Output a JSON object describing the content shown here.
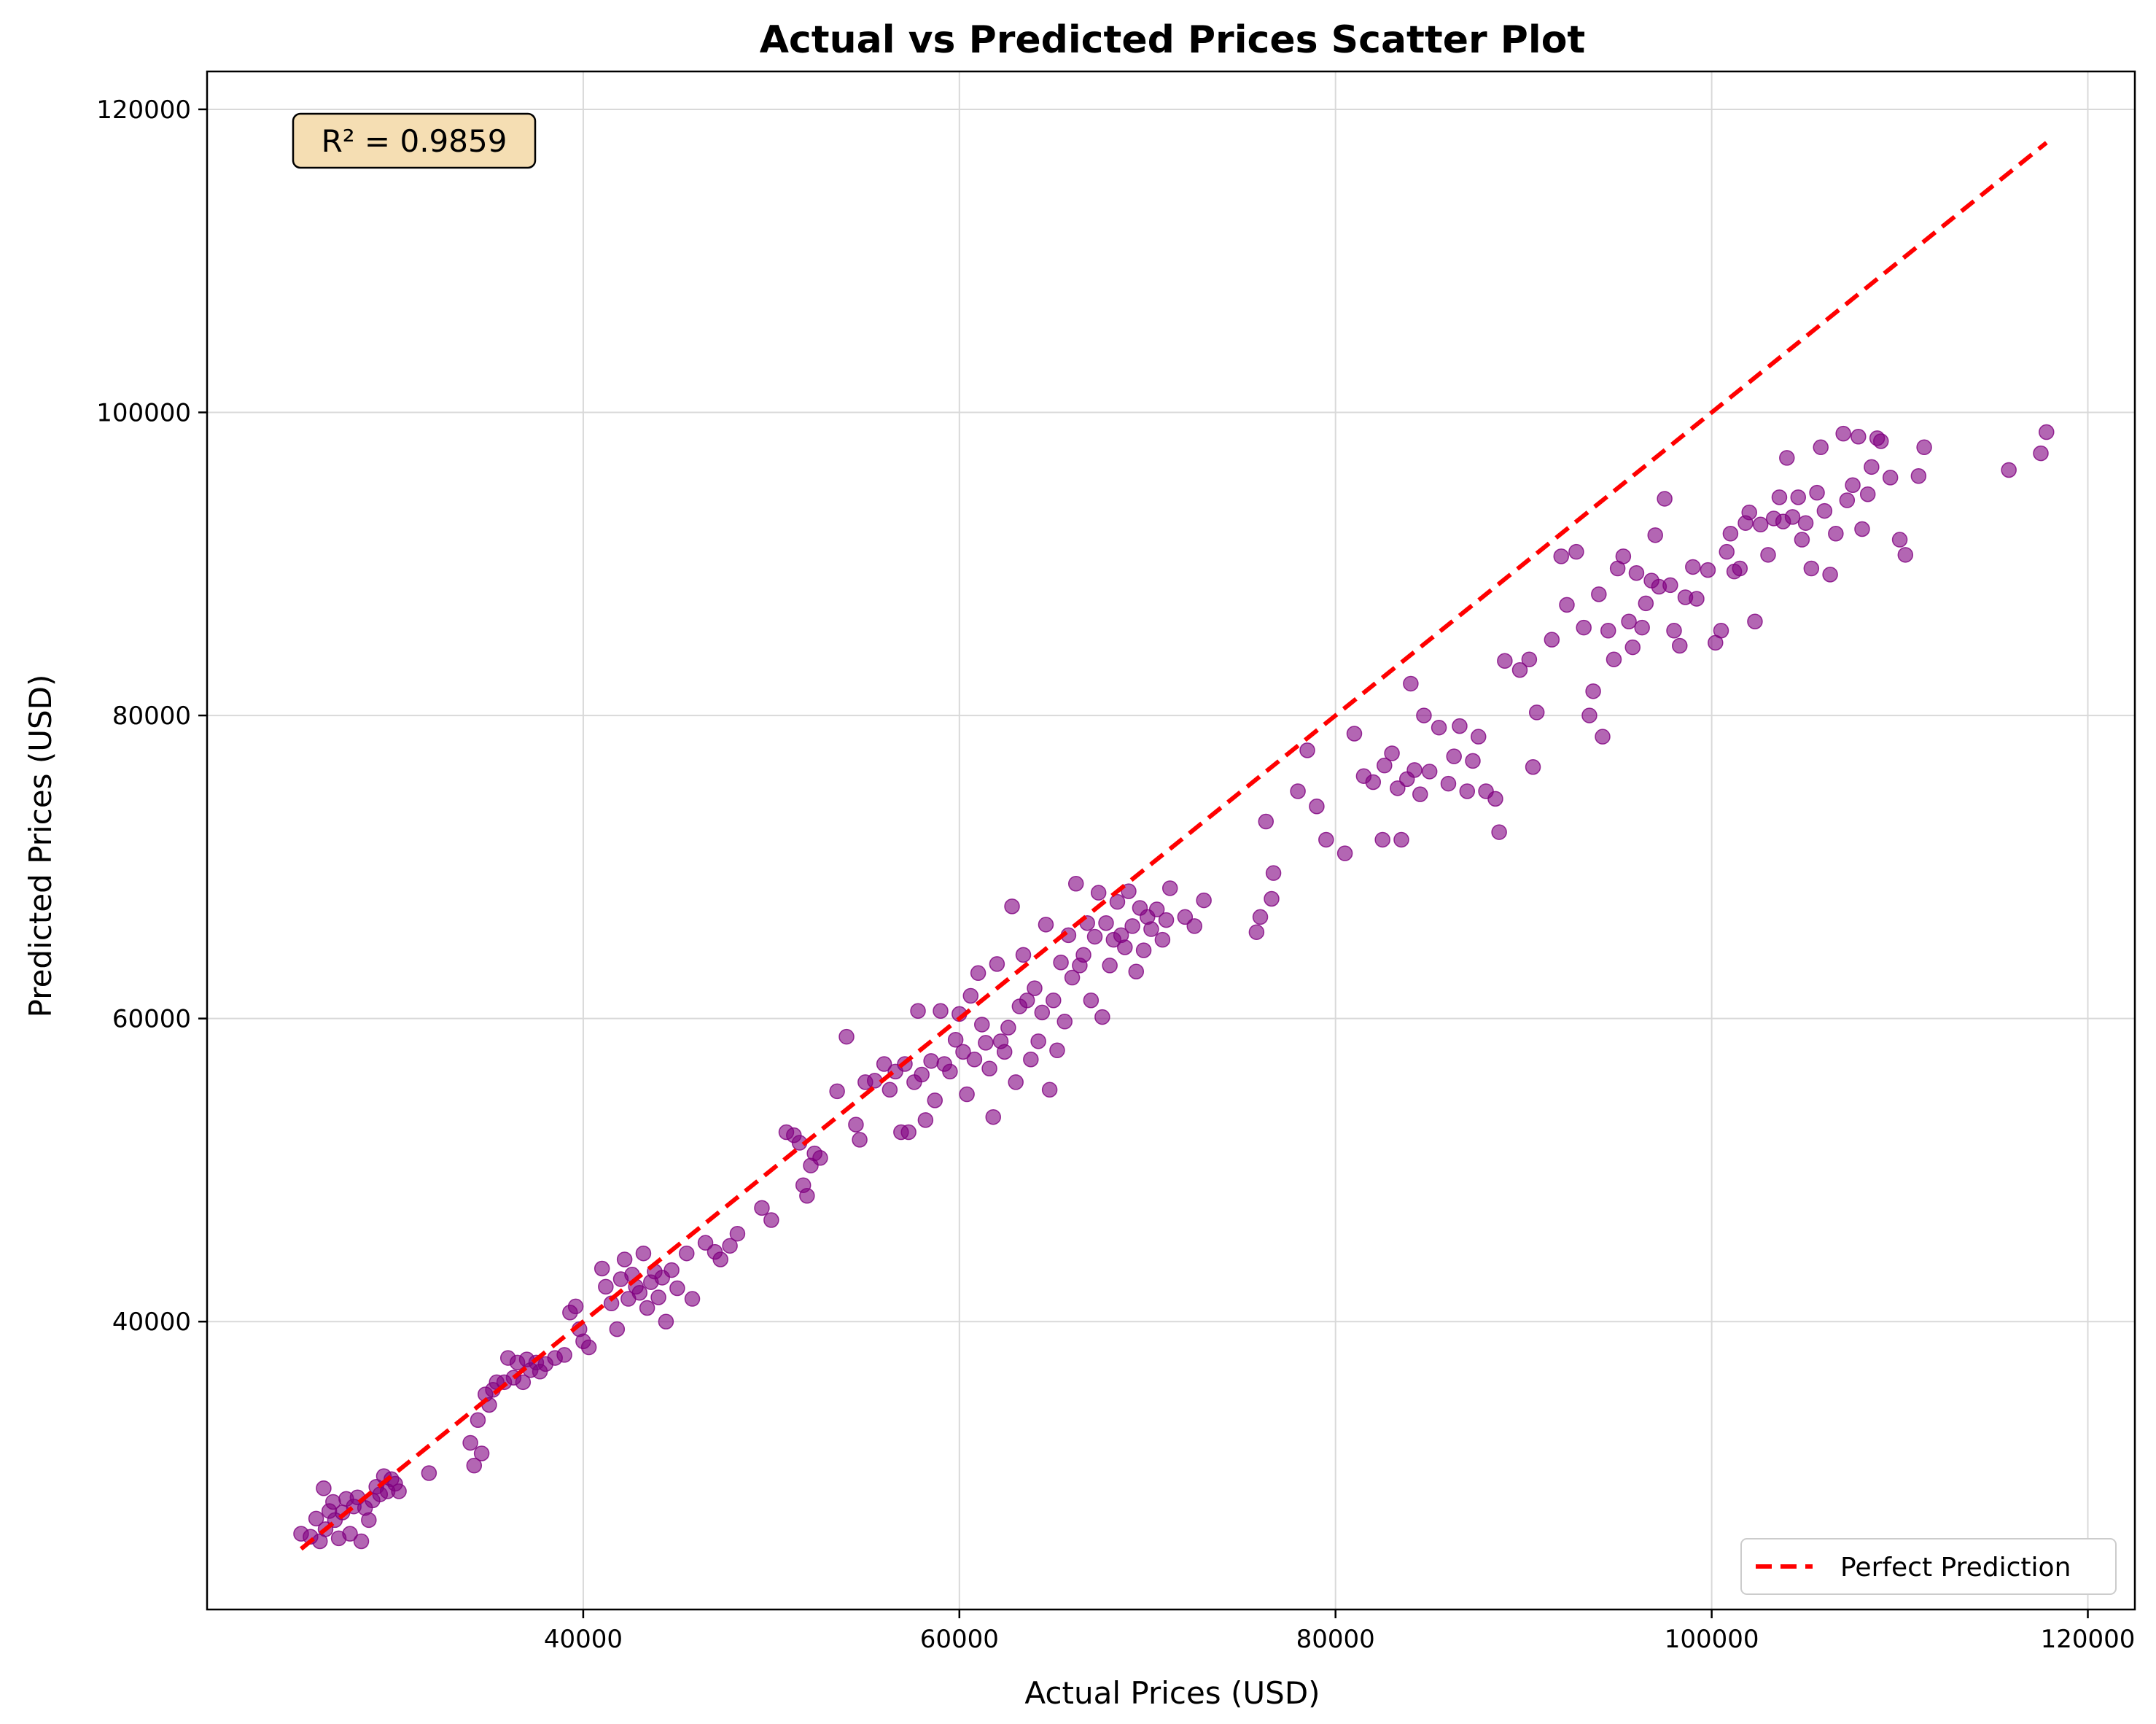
{
  "chart_data": {
    "type": "scatter",
    "title": "Actual vs Predicted Prices Scatter Plot",
    "xlabel": "Actual Prices (USD)",
    "ylabel": "Predicted Prices (USD)",
    "xlim": [
      20000,
      122500
    ],
    "ylim": [
      21000,
      122500
    ],
    "xticks": [
      40000,
      60000,
      80000,
      100000,
      120000
    ],
    "yticks": [
      40000,
      60000,
      80000,
      100000,
      120000
    ],
    "grid": true,
    "legend_position": "lower-right",
    "annotation": "R² = 0.9859",
    "colors": {
      "points": "#800080",
      "reference_line": "#ff0000",
      "annotation_bg": "#f5deb3"
    },
    "series": [
      {
        "name": "",
        "kind": "points",
        "points": [
          [
            25000,
            26000
          ],
          [
            25500,
            25800
          ],
          [
            25800,
            27000
          ],
          [
            26000,
            25500
          ],
          [
            26200,
            29000
          ],
          [
            26300,
            26300
          ],
          [
            26500,
            27500
          ],
          [
            26700,
            28100
          ],
          [
            26800,
            26900
          ],
          [
            27000,
            25700
          ],
          [
            27200,
            27400
          ],
          [
            27400,
            28300
          ],
          [
            27600,
            26000
          ],
          [
            27800,
            27800
          ],
          [
            28000,
            28400
          ],
          [
            28200,
            25500
          ],
          [
            28400,
            27700
          ],
          [
            28600,
            26900
          ],
          [
            28800,
            28200
          ],
          [
            29000,
            29100
          ],
          [
            29200,
            28600
          ],
          [
            29400,
            29800
          ],
          [
            29600,
            28800
          ],
          [
            29800,
            29600
          ],
          [
            30000,
            29300
          ],
          [
            30200,
            28800
          ],
          [
            31800,
            30000
          ],
          [
            34000,
            32000
          ],
          [
            34200,
            30500
          ],
          [
            34400,
            33500
          ],
          [
            34600,
            31300
          ],
          [
            34800,
            35200
          ],
          [
            35000,
            34500
          ],
          [
            35200,
            35500
          ],
          [
            35400,
            36000
          ],
          [
            35800,
            36000
          ],
          [
            36000,
            37600
          ],
          [
            36300,
            36300
          ],
          [
            36500,
            37300
          ],
          [
            36800,
            36000
          ],
          [
            37000,
            37500
          ],
          [
            37200,
            36800
          ],
          [
            37500,
            37300
          ],
          [
            37700,
            36700
          ],
          [
            38000,
            37200
          ],
          [
            38500,
            37600
          ],
          [
            39000,
            37800
          ],
          [
            39300,
            40600
          ],
          [
            39600,
            41000
          ],
          [
            39800,
            39500
          ],
          [
            40000,
            38700
          ],
          [
            40300,
            38300
          ],
          [
            41000,
            43500
          ],
          [
            41200,
            42300
          ],
          [
            41500,
            41200
          ],
          [
            41800,
            39500
          ],
          [
            42000,
            42800
          ],
          [
            42200,
            44100
          ],
          [
            42400,
            41500
          ],
          [
            42600,
            43100
          ],
          [
            42800,
            42300
          ],
          [
            43000,
            41900
          ],
          [
            43200,
            44500
          ],
          [
            43400,
            40900
          ],
          [
            43600,
            42600
          ],
          [
            43800,
            43300
          ],
          [
            44000,
            41600
          ],
          [
            44200,
            42900
          ],
          [
            44400,
            40000
          ],
          [
            44700,
            43400
          ],
          [
            45000,
            42200
          ],
          [
            45500,
            44500
          ],
          [
            45800,
            41500
          ],
          [
            46500,
            45200
          ],
          [
            47000,
            44600
          ],
          [
            47300,
            44100
          ],
          [
            47800,
            45000
          ],
          [
            48200,
            45800
          ],
          [
            49500,
            47500
          ],
          [
            50000,
            46700
          ],
          [
            50800,
            52500
          ],
          [
            51200,
            52300
          ],
          [
            51500,
            51800
          ],
          [
            51700,
            49000
          ],
          [
            51900,
            48300
          ],
          [
            52100,
            50300
          ],
          [
            52300,
            51100
          ],
          [
            52600,
            50800
          ],
          [
            53500,
            55200
          ],
          [
            54000,
            58800
          ],
          [
            54500,
            53000
          ],
          [
            54700,
            52000
          ],
          [
            55000,
            55800
          ],
          [
            55500,
            55900
          ],
          [
            56000,
            57000
          ],
          [
            56300,
            55300
          ],
          [
            56600,
            56500
          ],
          [
            56900,
            52500
          ],
          [
            57100,
            57000
          ],
          [
            57300,
            52500
          ],
          [
            57600,
            55800
          ],
          [
            57800,
            60500
          ],
          [
            58000,
            56300
          ],
          [
            58200,
            53300
          ],
          [
            58500,
            57200
          ],
          [
            58700,
            54600
          ],
          [
            59000,
            60500
          ],
          [
            59200,
            57000
          ],
          [
            59500,
            56500
          ],
          [
            59800,
            58600
          ],
          [
            60000,
            60300
          ],
          [
            60200,
            57800
          ],
          [
            60400,
            55000
          ],
          [
            60600,
            61500
          ],
          [
            60800,
            57300
          ],
          [
            61000,
            63000
          ],
          [
            61200,
            59600
          ],
          [
            61400,
            58400
          ],
          [
            61600,
            56700
          ],
          [
            61800,
            53500
          ],
          [
            62000,
            63600
          ],
          [
            62200,
            58500
          ],
          [
            62400,
            57800
          ],
          [
            62600,
            59400
          ],
          [
            62800,
            67400
          ],
          [
            63000,
            55800
          ],
          [
            63200,
            60800
          ],
          [
            63400,
            64200
          ],
          [
            63600,
            61200
          ],
          [
            63800,
            57300
          ],
          [
            64000,
            62000
          ],
          [
            64200,
            58500
          ],
          [
            64400,
            60400
          ],
          [
            64600,
            66200
          ],
          [
            64800,
            55300
          ],
          [
            65000,
            61200
          ],
          [
            65200,
            57900
          ],
          [
            65400,
            63700
          ],
          [
            65600,
            59800
          ],
          [
            65800,
            65500
          ],
          [
            66000,
            62700
          ],
          [
            66200,
            68900
          ],
          [
            66400,
            63500
          ],
          [
            66600,
            64200
          ],
          [
            66800,
            66300
          ],
          [
            67000,
            61200
          ],
          [
            67200,
            65400
          ],
          [
            67400,
            68300
          ],
          [
            67600,
            60100
          ],
          [
            67800,
            66300
          ],
          [
            68000,
            63500
          ],
          [
            68200,
            65200
          ],
          [
            68400,
            67700
          ],
          [
            68600,
            65500
          ],
          [
            68800,
            64700
          ],
          [
            69000,
            68400
          ],
          [
            69200,
            66100
          ],
          [
            69400,
            63100
          ],
          [
            69600,
            67300
          ],
          [
            69800,
            64500
          ],
          [
            70000,
            66700
          ],
          [
            70200,
            65900
          ],
          [
            70500,
            67200
          ],
          [
            70800,
            65200
          ],
          [
            71000,
            66500
          ],
          [
            71200,
            68600
          ],
          [
            72000,
            66700
          ],
          [
            72500,
            66100
          ],
          [
            73000,
            67800
          ],
          [
            75800,
            65700
          ],
          [
            76000,
            66700
          ],
          [
            76300,
            73000
          ],
          [
            76600,
            67900
          ],
          [
            76700,
            69600
          ],
          [
            78000,
            75000
          ],
          [
            78500,
            77700
          ],
          [
            79000,
            74000
          ],
          [
            79500,
            71800
          ],
          [
            80500,
            70900
          ],
          [
            81000,
            78800
          ],
          [
            81500,
            76000
          ],
          [
            82000,
            75600
          ],
          [
            82500,
            71800
          ],
          [
            82600,
            76700
          ],
          [
            83000,
            77500
          ],
          [
            83300,
            75200
          ],
          [
            83500,
            71800
          ],
          [
            83800,
            75800
          ],
          [
            84000,
            82100
          ],
          [
            84200,
            76400
          ],
          [
            84500,
            74800
          ],
          [
            84700,
            80000
          ],
          [
            85000,
            76300
          ],
          [
            85500,
            79200
          ],
          [
            86000,
            75500
          ],
          [
            86300,
            77300
          ],
          [
            86600,
            79300
          ],
          [
            87000,
            75000
          ],
          [
            87300,
            77000
          ],
          [
            87600,
            78600
          ],
          [
            88000,
            75000
          ],
          [
            88500,
            74500
          ],
          [
            88700,
            72300
          ],
          [
            89000,
            83600
          ],
          [
            89800,
            83000
          ],
          [
            90300,
            83700
          ],
          [
            90500,
            76600
          ],
          [
            90700,
            80200
          ],
          [
            91500,
            85000
          ],
          [
            92000,
            90500
          ],
          [
            92300,
            87300
          ],
          [
            92800,
            90800
          ],
          [
            93200,
            85800
          ],
          [
            93500,
            80000
          ],
          [
            93700,
            81600
          ],
          [
            94000,
            88000
          ],
          [
            94200,
            78600
          ],
          [
            94500,
            85600
          ],
          [
            94800,
            83700
          ],
          [
            95000,
            89700
          ],
          [
            95300,
            90500
          ],
          [
            95600,
            86200
          ],
          [
            95800,
            84500
          ],
          [
            96000,
            89400
          ],
          [
            96300,
            85800
          ],
          [
            96500,
            87400
          ],
          [
            96800,
            88900
          ],
          [
            97000,
            91900
          ],
          [
            97200,
            88500
          ],
          [
            97500,
            94300
          ],
          [
            97800,
            88600
          ],
          [
            98000,
            85600
          ],
          [
            98300,
            84600
          ],
          [
            98600,
            87800
          ],
          [
            99000,
            89800
          ],
          [
            99200,
            87700
          ],
          [
            99800,
            89600
          ],
          [
            100200,
            84800
          ],
          [
            100500,
            85600
          ],
          [
            100800,
            90800
          ],
          [
            101000,
            92000
          ],
          [
            101200,
            89500
          ],
          [
            101500,
            89700
          ],
          [
            101800,
            92700
          ],
          [
            102000,
            93400
          ],
          [
            102300,
            86200
          ],
          [
            102600,
            92600
          ],
          [
            103000,
            90600
          ],
          [
            103300,
            93000
          ],
          [
            103600,
            94400
          ],
          [
            103800,
            92800
          ],
          [
            104000,
            97000
          ],
          [
            104300,
            93100
          ],
          [
            104600,
            94400
          ],
          [
            104800,
            91600
          ],
          [
            105000,
            92700
          ],
          [
            105300,
            89700
          ],
          [
            105600,
            94700
          ],
          [
            105800,
            97700
          ],
          [
            106000,
            93500
          ],
          [
            106300,
            89300
          ],
          [
            106600,
            92000
          ],
          [
            107000,
            98600
          ],
          [
            107200,
            94200
          ],
          [
            107500,
            95200
          ],
          [
            107800,
            98400
          ],
          [
            108000,
            92300
          ],
          [
            108300,
            94600
          ],
          [
            108500,
            96400
          ],
          [
            108800,
            98300
          ],
          [
            109000,
            98100
          ],
          [
            109500,
            95700
          ],
          [
            110000,
            91600
          ],
          [
            110300,
            90600
          ],
          [
            111000,
            95800
          ],
          [
            111300,
            97700
          ],
          [
            115800,
            96200
          ],
          [
            117500,
            97300
          ],
          [
            117800,
            98700
          ]
        ]
      },
      {
        "name": "Perfect Prediction",
        "kind": "line",
        "points": [
          [
            25000,
            25000
          ],
          [
            117800,
            117800
          ]
        ]
      }
    ]
  }
}
